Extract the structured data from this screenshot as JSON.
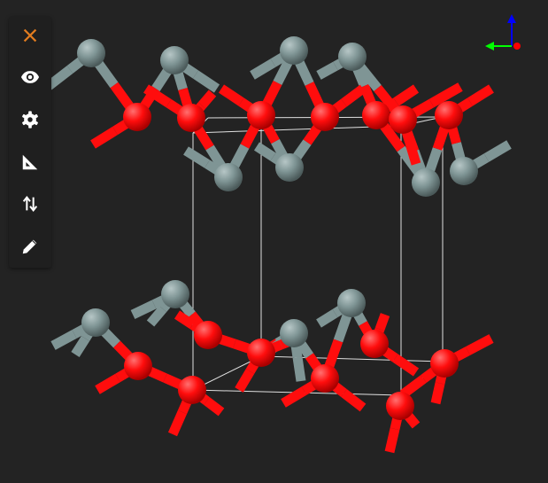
{
  "toolbar": {
    "items": [
      {
        "icon": "close-icon",
        "color": "#e07b1f"
      },
      {
        "icon": "eye-icon",
        "color": "#ffffff"
      },
      {
        "icon": "gear-icon",
        "color": "#ffffff"
      },
      {
        "icon": "set-square-icon",
        "color": "#ffffff"
      },
      {
        "icon": "swap-vertical-icon",
        "color": "#ffffff"
      },
      {
        "icon": "pencil-icon",
        "color": "#ffffff"
      }
    ]
  },
  "colors": {
    "background": "#232323",
    "atom_gray": "#7f9595",
    "atom_red": "#ff0d0d",
    "unit_cell": "#e0e0e0",
    "axis_x": "#ff0000",
    "axis_y": "#00ff00",
    "axis_z": "#0000ff"
  }
}
